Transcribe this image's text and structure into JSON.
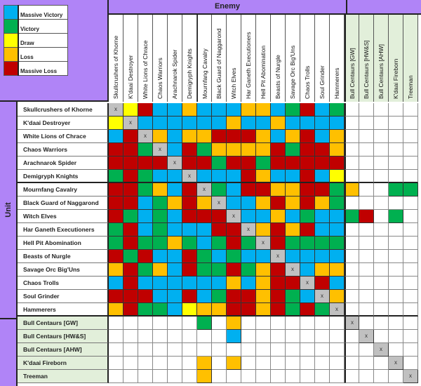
{
  "legend": [
    {
      "label": "Massive Victory",
      "color": "#00b0f0"
    },
    {
      "label": "Victory",
      "color": "#00b050"
    },
    {
      "label": "Draw",
      "color": "#ffff00"
    },
    {
      "label": "Loss",
      "color": "#ffc000"
    },
    {
      "label": "Massive Loss",
      "color": "#c00000"
    }
  ],
  "colors": {
    "B": "#00b0f0",
    "G": "#00b050",
    "Y": "#ffff00",
    "O": "#ffc000",
    "R": "#c00000",
    "X": "#c0c0c0",
    "-": "#ffffff"
  },
  "header": {
    "enemy_label": "Enemy",
    "unit_label": "Unit"
  },
  "enemy_columns": [
    "Skullcrushers of Khorne",
    "K'daai Destroyer",
    "White Lions of Chrace",
    "Chaos Warriors",
    "Arachnarok Spider",
    "Demigryph Knights",
    "Mournfang Cavalry",
    "Black Guard of Naggarond",
    "Witch Elves",
    "Har Ganeth Executioners",
    "Hell Pit Abomination",
    "Beasts of Nurgle",
    "Savage Orc Big'Uns",
    "Chaos Trolls",
    "Soul Grinder",
    "Hammerers"
  ],
  "extra_columns": [
    "Bull Centaurs [GW]",
    "Bull Centaurs [HW&S]",
    "Bull Centaurs [AHW]",
    "K'daai Fireborn",
    "Treeman"
  ],
  "self_marker": "x",
  "rows": [
    {
      "unit": "Skullcrushers of Khorne",
      "results": [
        "X",
        "Y",
        "R",
        "B",
        "B",
        "O",
        "B",
        "B",
        "B",
        "O",
        "O",
        "B",
        "G",
        "R",
        "B",
        "G"
      ],
      "extra": [
        "-",
        "-",
        "-",
        "-",
        "-"
      ]
    },
    {
      "unit": "K'daai Destroyer",
      "results": [
        "Y",
        "X",
        "B",
        "B",
        "B",
        "B",
        "B",
        "B",
        "O",
        "B",
        "B",
        "O",
        "B",
        "B",
        "B",
        "B"
      ],
      "extra": [
        "-",
        "-",
        "-",
        "-",
        "-"
      ]
    },
    {
      "unit": "White Lions of Chrace",
      "results": [
        "B",
        "R",
        "X",
        "O",
        "B",
        "O",
        "O",
        "R",
        "R",
        "R",
        "O",
        "B",
        "O",
        "R",
        "B",
        "O"
      ],
      "extra": [
        "-",
        "-",
        "-",
        "-",
        "-"
      ]
    },
    {
      "unit": "Chaos Warriors",
      "results": [
        "R",
        "R",
        "G",
        "X",
        "B",
        "R",
        "G",
        "O",
        "O",
        "O",
        "O",
        "R",
        "G",
        "R",
        "R",
        "O"
      ],
      "extra": [
        "-",
        "-",
        "-",
        "-",
        "-"
      ]
    },
    {
      "unit": "Arachnarok Spider",
      "results": [
        "R",
        "R",
        "R",
        "R",
        "X",
        "R",
        "R",
        "G",
        "R",
        "R",
        "G",
        "R",
        "R",
        "R",
        "R",
        "R"
      ],
      "extra": [
        "-",
        "-",
        "-",
        "-",
        "-"
      ]
    },
    {
      "unit": "Demigryph Knights",
      "results": [
        "G",
        "R",
        "G",
        "B",
        "B",
        "X",
        "B",
        "B",
        "B",
        "R",
        "O",
        "B",
        "B",
        "R",
        "B",
        "Y"
      ],
      "extra": [
        "-",
        "-",
        "-",
        "-",
        "-"
      ]
    },
    {
      "unit": "Mournfang Cavalry",
      "results": [
        "R",
        "R",
        "G",
        "O",
        "B",
        "R",
        "X",
        "G",
        "B",
        "R",
        "R",
        "O",
        "O",
        "R",
        "R",
        "G"
      ],
      "extra": [
        "O",
        "-",
        "-",
        "G",
        "G"
      ]
    },
    {
      "unit": "Black Guard of Naggarond",
      "results": [
        "R",
        "R",
        "B",
        "G",
        "O",
        "R",
        "O",
        "X",
        "B",
        "B",
        "O",
        "R",
        "O",
        "R",
        "O",
        "G"
      ],
      "extra": [
        "-",
        "-",
        "-",
        "-",
        "-"
      ]
    },
    {
      "unit": "Witch Elves",
      "results": [
        "R",
        "G",
        "B",
        "G",
        "B",
        "R",
        "R",
        "R",
        "X",
        "B",
        "B",
        "O",
        "B",
        "G",
        "B",
        "B"
      ],
      "extra": [
        "G",
        "R",
        "-",
        "G",
        "-"
      ]
    },
    {
      "unit": "Har Ganeth Executioners",
      "results": [
        "G",
        "R",
        "B",
        "G",
        "B",
        "B",
        "B",
        "R",
        "R",
        "X",
        "O",
        "R",
        "O",
        "R",
        "B",
        "B"
      ],
      "extra": [
        "-",
        "-",
        "-",
        "-",
        "-"
      ]
    },
    {
      "unit": "Hell Pit Abomination",
      "results": [
        "G",
        "R",
        "G",
        "G",
        "O",
        "G",
        "B",
        "G",
        "R",
        "G",
        "X",
        "R",
        "G",
        "G",
        "G",
        "G"
      ],
      "extra": [
        "-",
        "-",
        "-",
        "-",
        "-"
      ]
    },
    {
      "unit": "Beasts of Nurgle",
      "results": [
        "R",
        "G",
        "R",
        "B",
        "B",
        "R",
        "G",
        "B",
        "G",
        "B",
        "B",
        "X",
        "B",
        "B",
        "B",
        "B"
      ],
      "extra": [
        "-",
        "-",
        "-",
        "-",
        "-"
      ]
    },
    {
      "unit": "Savage Orc Big'Uns",
      "results": [
        "O",
        "R",
        "G",
        "O",
        "B",
        "R",
        "G",
        "G",
        "R",
        "G",
        "O",
        "R",
        "X",
        "B",
        "O",
        "O"
      ],
      "extra": [
        "-",
        "-",
        "-",
        "-",
        "-"
      ]
    },
    {
      "unit": "Chaos Trolls",
      "results": [
        "B",
        "R",
        "B",
        "B",
        "B",
        "B",
        "B",
        "B",
        "O",
        "B",
        "O",
        "R",
        "R",
        "X",
        "R",
        "B"
      ],
      "extra": [
        "-",
        "-",
        "-",
        "-",
        "-"
      ]
    },
    {
      "unit": "Soul Grinder",
      "results": [
        "R",
        "R",
        "R",
        "B",
        "B",
        "R",
        "B",
        "G",
        "R",
        "R",
        "O",
        "R",
        "G",
        "B",
        "X",
        "O"
      ],
      "extra": [
        "-",
        "-",
        "-",
        "-",
        "-"
      ]
    },
    {
      "unit": "Hammerers",
      "results": [
        "O",
        "R",
        "G",
        "G",
        "B",
        "Y",
        "O",
        "O",
        "R",
        "R",
        "O",
        "R",
        "G",
        "R",
        "G",
        "X"
      ],
      "extra": [
        "-",
        "-",
        "-",
        "-",
        "-"
      ]
    }
  ],
  "extra_rows": [
    {
      "unit": "Bull Centaurs [GW]",
      "results": [
        "-",
        "-",
        "-",
        "-",
        "-",
        "-",
        "G",
        "-",
        "O",
        "-",
        "-",
        "-",
        "-",
        "-",
        "-",
        "-"
      ],
      "extra": [
        "X",
        "-",
        "-",
        "-",
        "-"
      ]
    },
    {
      "unit": "Bull Centaurs [HW&S]",
      "results": [
        "-",
        "-",
        "-",
        "-",
        "-",
        "-",
        "-",
        "-",
        "B",
        "-",
        "-",
        "-",
        "-",
        "-",
        "-",
        "-"
      ],
      "extra": [
        "-",
        "X",
        "-",
        "-",
        "-"
      ]
    },
    {
      "unit": "Bull Centaurs [AHW]",
      "results": [
        "-",
        "-",
        "-",
        "-",
        "-",
        "-",
        "-",
        "-",
        "-",
        "-",
        "-",
        "-",
        "-",
        "-",
        "-",
        "-"
      ],
      "extra": [
        "-",
        "-",
        "X",
        "-",
        "-"
      ]
    },
    {
      "unit": "K'daai Fireborn",
      "results": [
        "-",
        "-",
        "-",
        "-",
        "-",
        "-",
        "O",
        "-",
        "O",
        "-",
        "-",
        "-",
        "-",
        "-",
        "-",
        "-"
      ],
      "extra": [
        "-",
        "-",
        "-",
        "X",
        "-"
      ]
    },
    {
      "unit": "Treeman",
      "results": [
        "-",
        "-",
        "-",
        "-",
        "-",
        "-",
        "O",
        "-",
        "-",
        "-",
        "-",
        "-",
        "-",
        "-",
        "-",
        "-"
      ],
      "extra": [
        "-",
        "-",
        "-",
        "-",
        "X"
      ]
    }
  ]
}
